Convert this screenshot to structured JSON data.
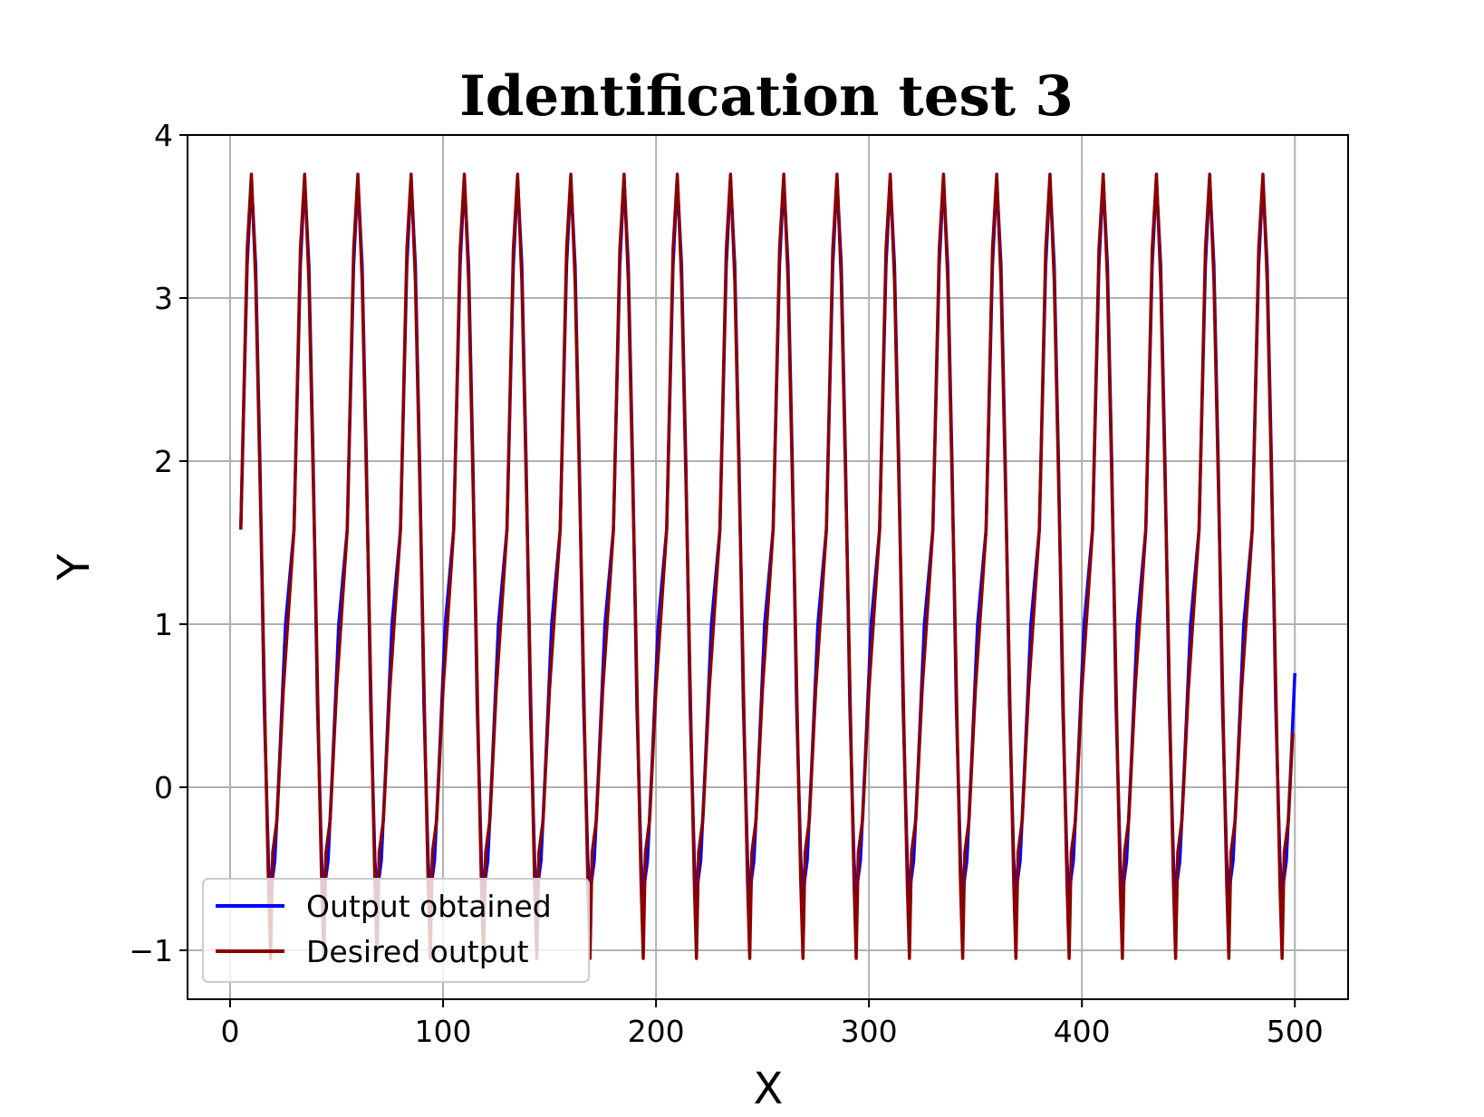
{
  "chart_data": {
    "type": "line",
    "title": "Identification test 3",
    "xlabel": "X",
    "ylabel": "Y",
    "xlim": [
      -20,
      525
    ],
    "ylim": [
      -1.3,
      4.0
    ],
    "x_ticks": [
      0,
      100,
      200,
      300,
      400,
      500
    ],
    "x_tick_labels": [
      "0",
      "100",
      "200",
      "300",
      "400",
      "500"
    ],
    "y_ticks": [
      -1,
      0,
      1,
      2,
      3,
      4
    ],
    "y_tick_labels": [
      "−1",
      "0",
      "1",
      "2",
      "3",
      "4"
    ],
    "grid": true,
    "legend_position": "lower-left",
    "x_range": [
      5,
      500
    ],
    "period": 25,
    "series": [
      {
        "name": "Output obtained",
        "color": "#0000ff",
        "x_start": 5,
        "x_end": 500,
        "peak": 3.73,
        "trough": -0.65,
        "cycle": [
          {
            "t": 0,
            "y": 1.58
          },
          {
            "t": 3,
            "y": 3.2
          },
          {
            "t": 5,
            "y": 3.73
          },
          {
            "t": 7,
            "y": 3.2
          },
          {
            "t": 9,
            "y": 2.0
          },
          {
            "t": 11,
            "y": 0.5
          },
          {
            "t": 13,
            "y": -0.45
          },
          {
            "t": 14,
            "y": -0.65
          },
          {
            "t": 16,
            "y": -0.45
          },
          {
            "t": 18,
            "y": 0.1
          },
          {
            "t": 21,
            "y": 1.0
          },
          {
            "t": 25,
            "y": 1.58
          }
        ]
      },
      {
        "name": "Desired output",
        "color": "#8b0000",
        "x_start": 5,
        "x_end": 499,
        "peak": 3.76,
        "trough": -1.05,
        "cycle": [
          {
            "t": 0,
            "y": 1.58
          },
          {
            "t": 3,
            "y": 3.3
          },
          {
            "t": 5,
            "y": 3.76
          },
          {
            "t": 7,
            "y": 3.1
          },
          {
            "t": 10,
            "y": 1.3
          },
          {
            "t": 12,
            "y": 0.0
          },
          {
            "t": 13,
            "y": -0.6
          },
          {
            "t": 14,
            "y": -1.05
          },
          {
            "t": 15,
            "y": -0.4
          },
          {
            "t": 17,
            "y": -0.2
          },
          {
            "t": 20,
            "y": 0.6
          },
          {
            "t": 25,
            "y": 1.58
          }
        ]
      }
    ]
  }
}
